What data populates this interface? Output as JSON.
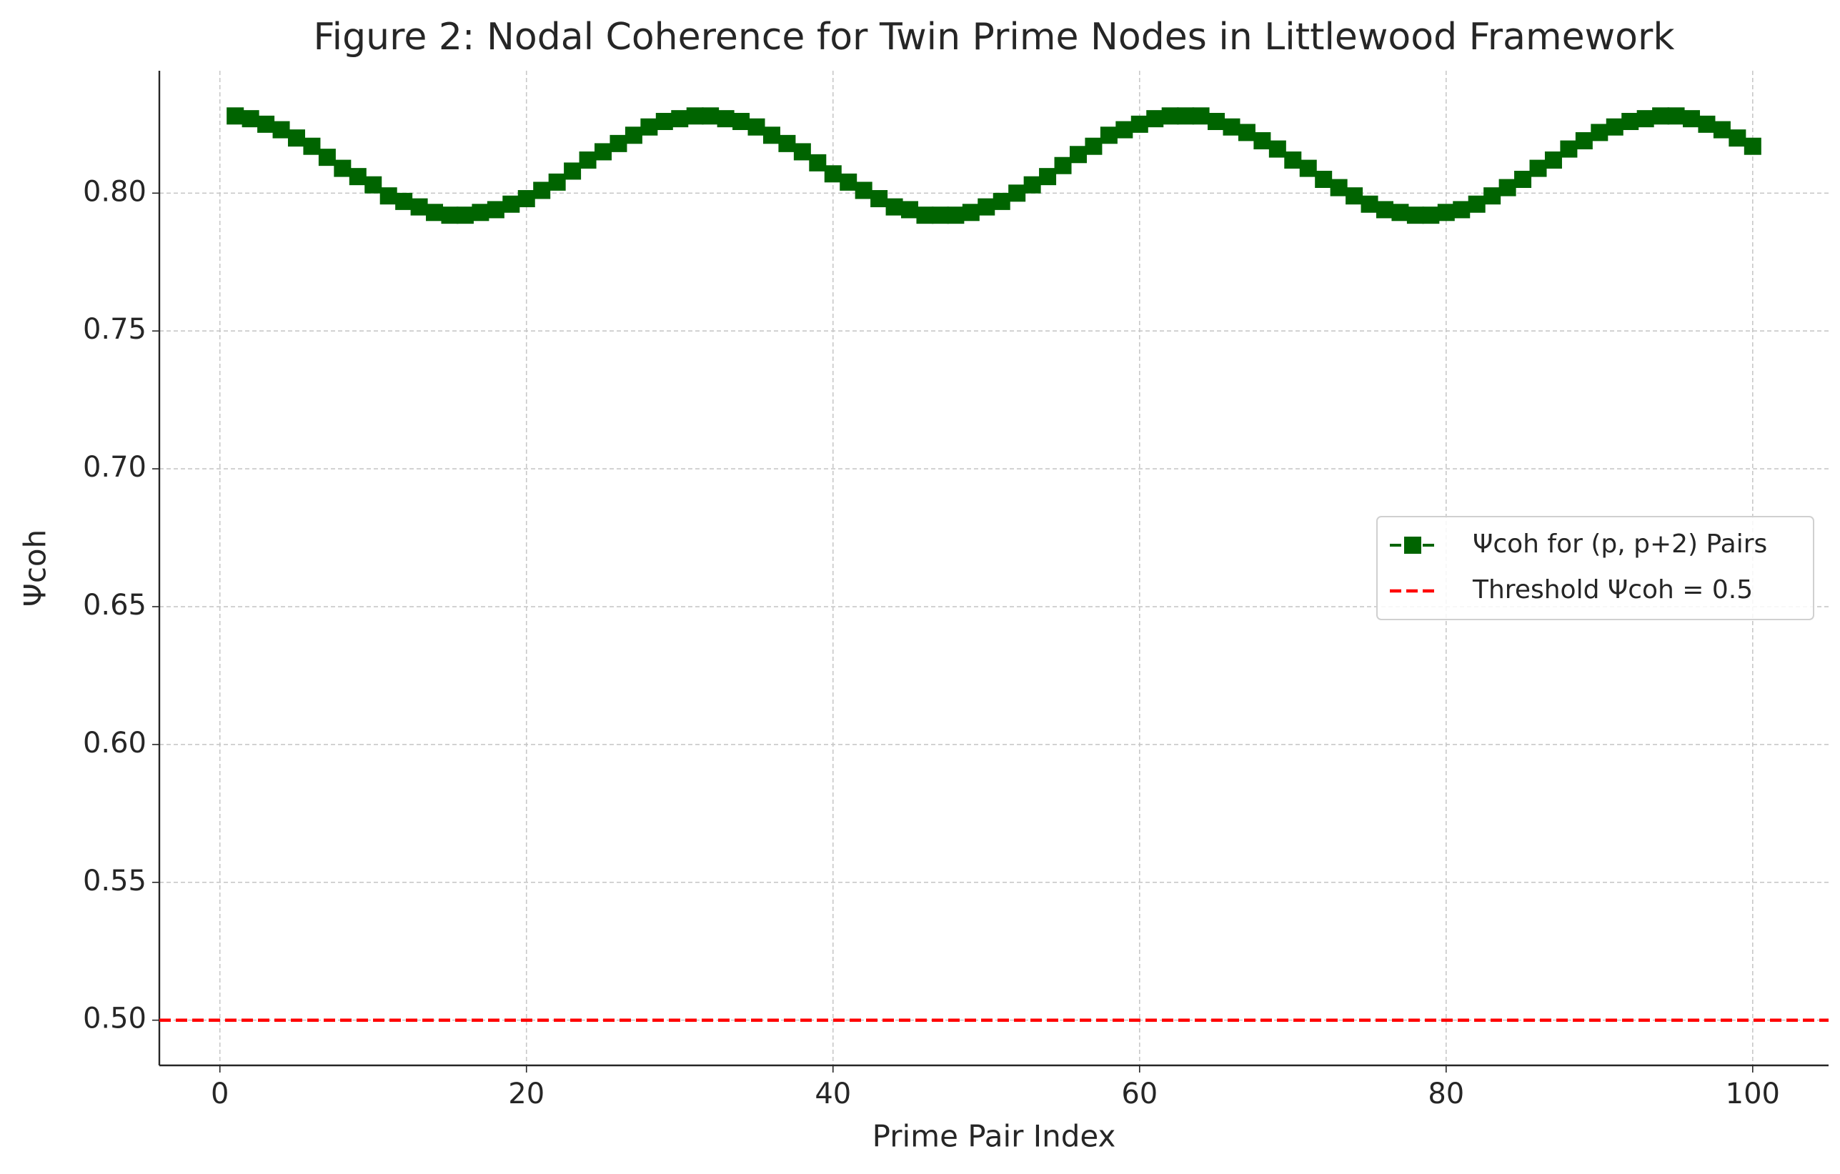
{
  "chart_data": {
    "type": "line",
    "title": "Figure 2: Nodal Coherence for Twin Prime Nodes in Littlewood Framework",
    "xlabel": "Prime Pair Index",
    "ylabel": "Ψcoh",
    "x": [
      1,
      2,
      3,
      4,
      5,
      6,
      7,
      8,
      9,
      10,
      11,
      12,
      13,
      14,
      15,
      16,
      17,
      18,
      19,
      20,
      21,
      22,
      23,
      24,
      25,
      26,
      27,
      28,
      29,
      30,
      31,
      32,
      33,
      34,
      35,
      36,
      37,
      38,
      39,
      40,
      41,
      42,
      43,
      44,
      45,
      46,
      47,
      48,
      49,
      50,
      51,
      52,
      53,
      54,
      55,
      56,
      57,
      58,
      59,
      60,
      61,
      62,
      63,
      64,
      65,
      66,
      67,
      68,
      69,
      70,
      71,
      72,
      73,
      74,
      75,
      76,
      77,
      78,
      79,
      80,
      81,
      82,
      83,
      84,
      85,
      86,
      87,
      88,
      89,
      90,
      91,
      92,
      93,
      94,
      95,
      96,
      97,
      98,
      99,
      100
    ],
    "series": [
      {
        "name": "Ψcoh for (p, p+2) Pairs",
        "color": "#006400",
        "values": [
          0.828,
          0.827,
          0.825,
          0.823,
          0.82,
          0.817,
          0.813,
          0.809,
          0.806,
          0.803,
          0.799,
          0.797,
          0.795,
          0.793,
          0.792,
          0.792,
          0.793,
          0.794,
          0.796,
          0.798,
          0.801,
          0.804,
          0.808,
          0.812,
          0.815,
          0.818,
          0.821,
          0.824,
          0.826,
          0.827,
          0.828,
          0.828,
          0.827,
          0.826,
          0.824,
          0.821,
          0.818,
          0.815,
          0.811,
          0.807,
          0.804,
          0.801,
          0.798,
          0.795,
          0.794,
          0.792,
          0.792,
          0.792,
          0.793,
          0.795,
          0.797,
          0.8,
          0.803,
          0.806,
          0.81,
          0.814,
          0.817,
          0.821,
          0.823,
          0.825,
          0.827,
          0.828,
          0.828,
          0.828,
          0.826,
          0.824,
          0.822,
          0.819,
          0.816,
          0.812,
          0.809,
          0.805,
          0.802,
          0.799,
          0.796,
          0.794,
          0.793,
          0.792,
          0.792,
          0.793,
          0.794,
          0.796,
          0.799,
          0.802,
          0.805,
          0.809,
          0.812,
          0.816,
          0.819,
          0.822,
          0.824,
          0.826,
          0.827,
          0.828,
          0.828,
          0.827,
          0.825,
          0.823,
          0.82,
          0.817
        ]
      }
    ],
    "threshold": {
      "name": "Threshold Ψcoh = 0.5",
      "value": 0.5,
      "color": "#ff0000"
    },
    "xlim": [
      -3.95,
      104.95
    ],
    "xticks": [
      0,
      20,
      40,
      60,
      80,
      100
    ],
    "ylim": [
      0.4836,
      0.8444
    ],
    "yticks": [
      {
        "value": 0.5,
        "label": "0.50"
      },
      0.55,
      {
        "value": 0.6,
        "label": "0.60"
      },
      0.65,
      {
        "value": 0.7,
        "label": "0.70"
      },
      0.75,
      {
        "value": 0.8,
        "label": "0.80"
      }
    ],
    "grid": true,
    "legend": "right"
  }
}
